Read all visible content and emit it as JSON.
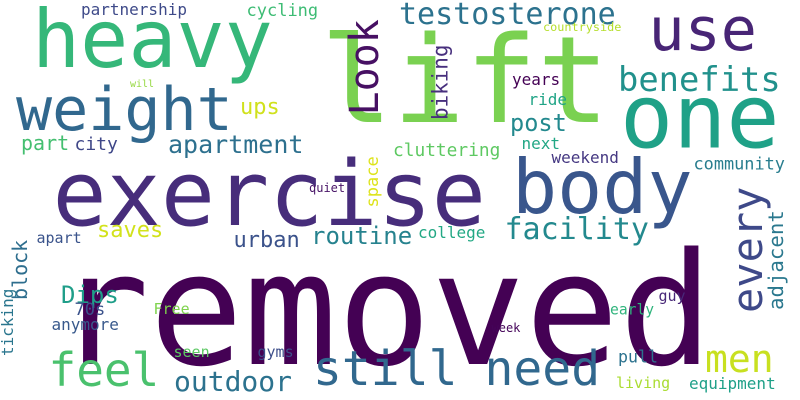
{
  "words": [
    {
      "text": "removed",
      "color": "#440154",
      "rotated": false
    },
    {
      "text": "lift",
      "color": "#7ad151",
      "rotated": false
    },
    {
      "text": "exercise",
      "color": "#472d7b",
      "rotated": false
    },
    {
      "text": "heavy",
      "color": "#35b779",
      "rotated": false
    },
    {
      "text": "use",
      "color": "#482576",
      "rotated": false
    },
    {
      "text": "one",
      "color": "#1fa187",
      "rotated": false
    },
    {
      "text": "weight",
      "color": "#31688e",
      "rotated": false
    },
    {
      "text": "body",
      "color": "#39568c",
      "rotated": false
    },
    {
      "text": "Look",
      "color": "#471063",
      "rotated": true
    },
    {
      "text": "need",
      "color": "#31688e",
      "rotated": false
    },
    {
      "text": "still",
      "color": "#31688e",
      "rotated": false
    },
    {
      "text": "feel",
      "color": "#4ac16d",
      "rotated": false
    },
    {
      "text": "men",
      "color": "#c8e020",
      "rotated": false
    },
    {
      "text": "every",
      "color": "#3e4989",
      "rotated": true
    },
    {
      "text": "testosterone",
      "color": "#2c728e",
      "rotated": false
    },
    {
      "text": "benefits",
      "color": "#21918c",
      "rotated": false
    },
    {
      "text": "facility",
      "color": "#23898e",
      "rotated": false
    },
    {
      "text": "outdoor",
      "color": "#2c728e",
      "rotated": false
    },
    {
      "text": "apartment",
      "color": "#2d708e",
      "rotated": false
    },
    {
      "text": "adjacent",
      "color": "#2a788e",
      "rotated": true
    },
    {
      "text": "routine",
      "color": "#26828e",
      "rotated": false
    },
    {
      "text": "urban",
      "color": "#3b528b",
      "rotated": false
    },
    {
      "text": "post",
      "color": "#23898e",
      "rotated": false
    },
    {
      "text": "biking",
      "color": "#472f7d",
      "rotated": true
    },
    {
      "text": "Dips",
      "color": "#1f9e89",
      "rotated": false
    },
    {
      "text": "pull",
      "color": "#2c728e",
      "rotated": false
    },
    {
      "text": "saves",
      "color": "#d2e21b",
      "rotated": false
    },
    {
      "text": "block",
      "color": "#2e6e8e",
      "rotated": true
    },
    {
      "text": "ups",
      "color": "#d0e11c",
      "rotated": false
    },
    {
      "text": "part",
      "color": "#44bf70",
      "rotated": false
    },
    {
      "text": "years",
      "color": "#440154",
      "rotated": false
    },
    {
      "text": "cluttering",
      "color": "#5ec962",
      "rotated": false
    },
    {
      "text": "community",
      "color": "#287d8e",
      "rotated": false
    },
    {
      "text": "partnership",
      "color": "#3e4a89",
      "rotated": false
    },
    {
      "text": "cycling",
      "color": "#3dbc74",
      "rotated": false
    },
    {
      "text": "city",
      "color": "#3f4788",
      "rotated": false
    },
    {
      "text": "ride",
      "color": "#20a486",
      "rotated": false
    },
    {
      "text": "weekend",
      "color": "#453882",
      "rotated": false
    },
    {
      "text": "next",
      "color": "#22a785",
      "rotated": false
    },
    {
      "text": "college",
      "color": "#22a884",
      "rotated": false
    },
    {
      "text": "space",
      "color": "#dde318",
      "rotated": true
    },
    {
      "text": "ticking",
      "color": "#2a768e",
      "rotated": true
    },
    {
      "text": "apart",
      "color": "#3a538b",
      "rotated": false
    },
    {
      "text": "70s",
      "color": "#3b528b",
      "rotated": false
    },
    {
      "text": "anymore",
      "color": "#38598c",
      "rotated": false
    },
    {
      "text": "Free",
      "color": "#7fd34e",
      "rotated": false
    },
    {
      "text": "guy",
      "color": "#482878",
      "rotated": false
    },
    {
      "text": "early",
      "color": "#2fb47c",
      "rotated": false
    },
    {
      "text": "gyms",
      "color": "#3d4e8a",
      "rotated": false
    },
    {
      "text": "seen",
      "color": "#5cc863",
      "rotated": false
    },
    {
      "text": "living",
      "color": "#aadc32",
      "rotated": false
    },
    {
      "text": "equipment",
      "color": "#1fa088",
      "rotated": false
    },
    {
      "text": "quiet",
      "color": "#481467",
      "rotated": false
    },
    {
      "text": "countryside",
      "color": "#b5de2b",
      "rotated": false
    },
    {
      "text": "will",
      "color": "#95d840",
      "rotated": false
    },
    {
      "text": "week",
      "color": "#450559",
      "rotated": false
    }
  ]
}
